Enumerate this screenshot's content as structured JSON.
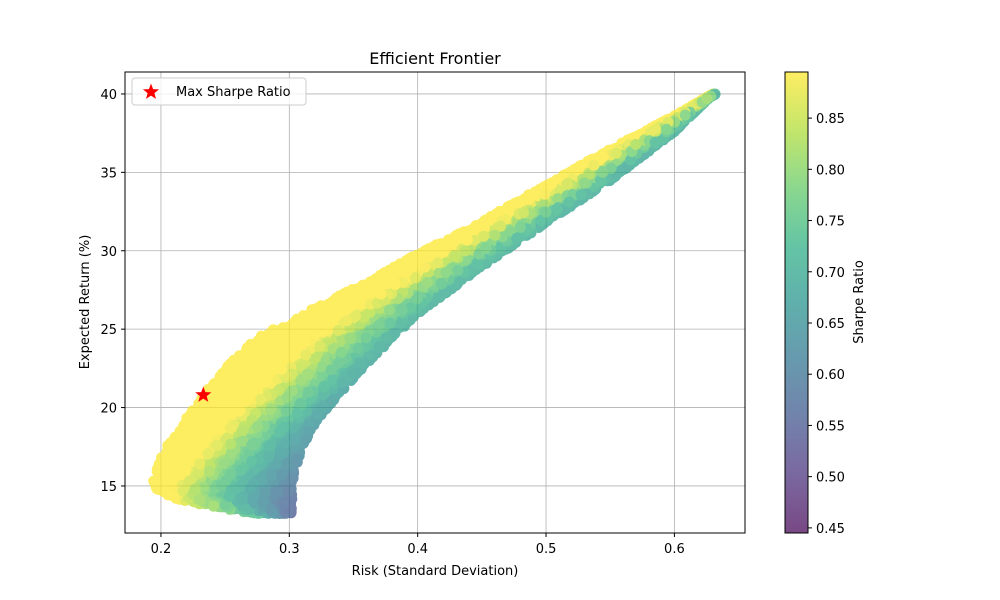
{
  "chart_data": {
    "type": "scatter",
    "title": "Efficient Frontier",
    "xlabel": "Risk (Standard Deviation)",
    "ylabel": "Expected Return (%)",
    "xlim": [
      0.172,
      0.655
    ],
    "ylim": [
      12.0,
      41.4
    ],
    "xticks": [
      0.2,
      0.3,
      0.4,
      0.5,
      0.6
    ],
    "xtick_labels": [
      "0.2",
      "0.3",
      "0.4",
      "0.5",
      "0.6"
    ],
    "yticks": [
      15,
      20,
      25,
      30,
      35,
      40
    ],
    "ytick_labels": [
      "15",
      "20",
      "25",
      "30",
      "35",
      "40"
    ],
    "grid": true,
    "colormap": "viridis",
    "point_alpha": 0.72,
    "cloud": {
      "description_points": "Simulated portfolios: return range ~13.3 to 40.0 %, risk range ~0.193 to 0.63; colored by Sharpe ratio",
      "upper_boundary": [
        [
          0.2,
          17.0
        ],
        [
          0.212,
          18.5
        ],
        [
          0.226,
          20.0
        ],
        [
          0.24,
          21.5
        ],
        [
          0.256,
          23.0
        ],
        [
          0.275,
          24.5
        ],
        [
          0.3,
          25.5
        ],
        [
          0.33,
          26.8
        ],
        [
          0.36,
          28.0
        ],
        [
          0.4,
          29.8
        ],
        [
          0.43,
          31.0
        ],
        [
          0.47,
          32.8
        ],
        [
          0.5,
          34.2
        ],
        [
          0.55,
          36.5
        ],
        [
          0.6,
          38.6
        ],
        [
          0.63,
          40.0
        ]
      ],
      "lower_boundary": [
        [
          0.193,
          15.0
        ],
        [
          0.203,
          14.4
        ],
        [
          0.22,
          14.0
        ],
        [
          0.24,
          13.7
        ],
        [
          0.26,
          13.4
        ],
        [
          0.28,
          13.2
        ],
        [
          0.295,
          13.2
        ],
        [
          0.302,
          14.5
        ],
        [
          0.305,
          16.0
        ],
        [
          0.31,
          17.5
        ],
        [
          0.32,
          19.0
        ],
        [
          0.34,
          21.0
        ],
        [
          0.36,
          22.8
        ],
        [
          0.4,
          26.0
        ],
        [
          0.45,
          29.0
        ],
        [
          0.5,
          31.8
        ],
        [
          0.55,
          34.5
        ],
        [
          0.6,
          37.6
        ],
        [
          0.63,
          40.0
        ]
      ]
    },
    "max_sharpe": {
      "label": "Max Sharpe Ratio",
      "x": 0.233,
      "y": 20.8,
      "color": "#ff0000"
    },
    "legend": {
      "position": "upper-left",
      "entries": [
        "Max Sharpe Ratio"
      ]
    },
    "colorbar": {
      "label": "Sharpe Ratio",
      "range": [
        0.445,
        0.895
      ],
      "ticks": [
        0.45,
        0.5,
        0.55,
        0.6,
        0.65,
        0.7,
        0.75,
        0.8,
        0.85
      ],
      "tick_labels": [
        "0.45",
        "0.50",
        "0.55",
        "0.60",
        "0.65",
        "0.70",
        "0.75",
        "0.80",
        "0.85"
      ]
    }
  }
}
